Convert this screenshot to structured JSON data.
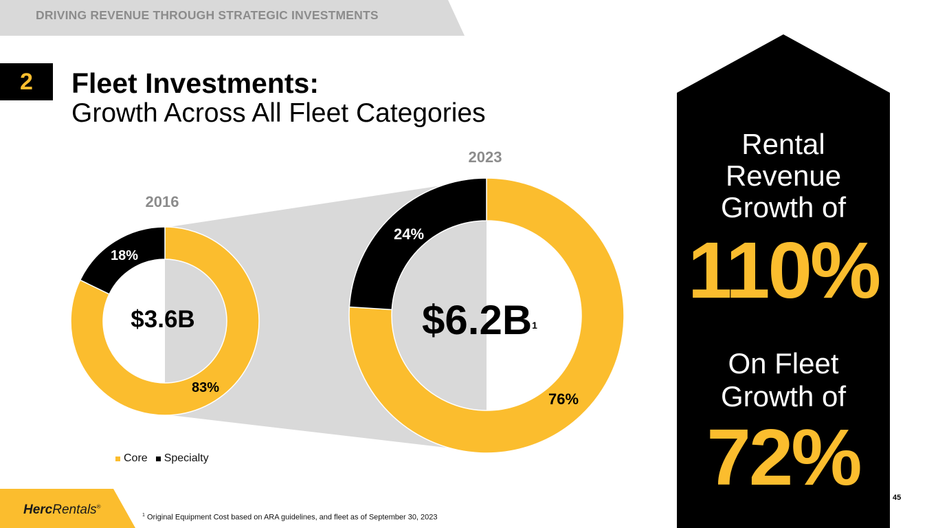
{
  "header": {
    "banner": "DRIVING REVENUE THROUGH STRATEGIC INVESTMENTS",
    "section_number": "2",
    "title": "Fleet Investments:",
    "subtitle": "Growth Across All Fleet Categories"
  },
  "chart_data": [
    {
      "type": "pie",
      "variant": "donut",
      "title": "2016",
      "center_label": "$3.6B",
      "categories": [
        "Core",
        "Specialty"
      ],
      "values": [
        83,
        18
      ],
      "value_labels": [
        "83%",
        "18%"
      ],
      "colors": [
        "#fbbd2e",
        "#000000"
      ]
    },
    {
      "type": "pie",
      "variant": "donut",
      "title": "2023",
      "center_label": "$6.2B",
      "center_footnote": "1",
      "categories": [
        "Core",
        "Specialty"
      ],
      "values": [
        76,
        24
      ],
      "value_labels": [
        "76%",
        "24%"
      ],
      "colors": [
        "#fbbd2e",
        "#000000"
      ]
    }
  ],
  "legend": [
    {
      "label": "Core",
      "color": "#fbbd2e"
    },
    {
      "label": "Specialty",
      "color": "#000000"
    }
  ],
  "highlights": {
    "rental_label_line1": "Rental",
    "rental_label_line2": "Revenue",
    "rental_label_line3": "Growth of",
    "rental_value": "110%",
    "fleet_label_line1": "On Fleet",
    "fleet_label_line2": "Growth of",
    "fleet_value": "72%"
  },
  "footer": {
    "footnote_marker": "1",
    "footnote_text": "Original Equipment Cost based on ARA guidelines, and fleet as of September 30, 2023",
    "page_number": "45",
    "logo_part1": "Herc",
    "logo_part2": "Rentals",
    "logo_reg": "®"
  },
  "colors": {
    "accent": "#fbbd2e",
    "dark": "#000000",
    "banner_bg": "#d9d9d9",
    "connector": "#d9d9d9",
    "banner_text": "#8c8c8c"
  }
}
